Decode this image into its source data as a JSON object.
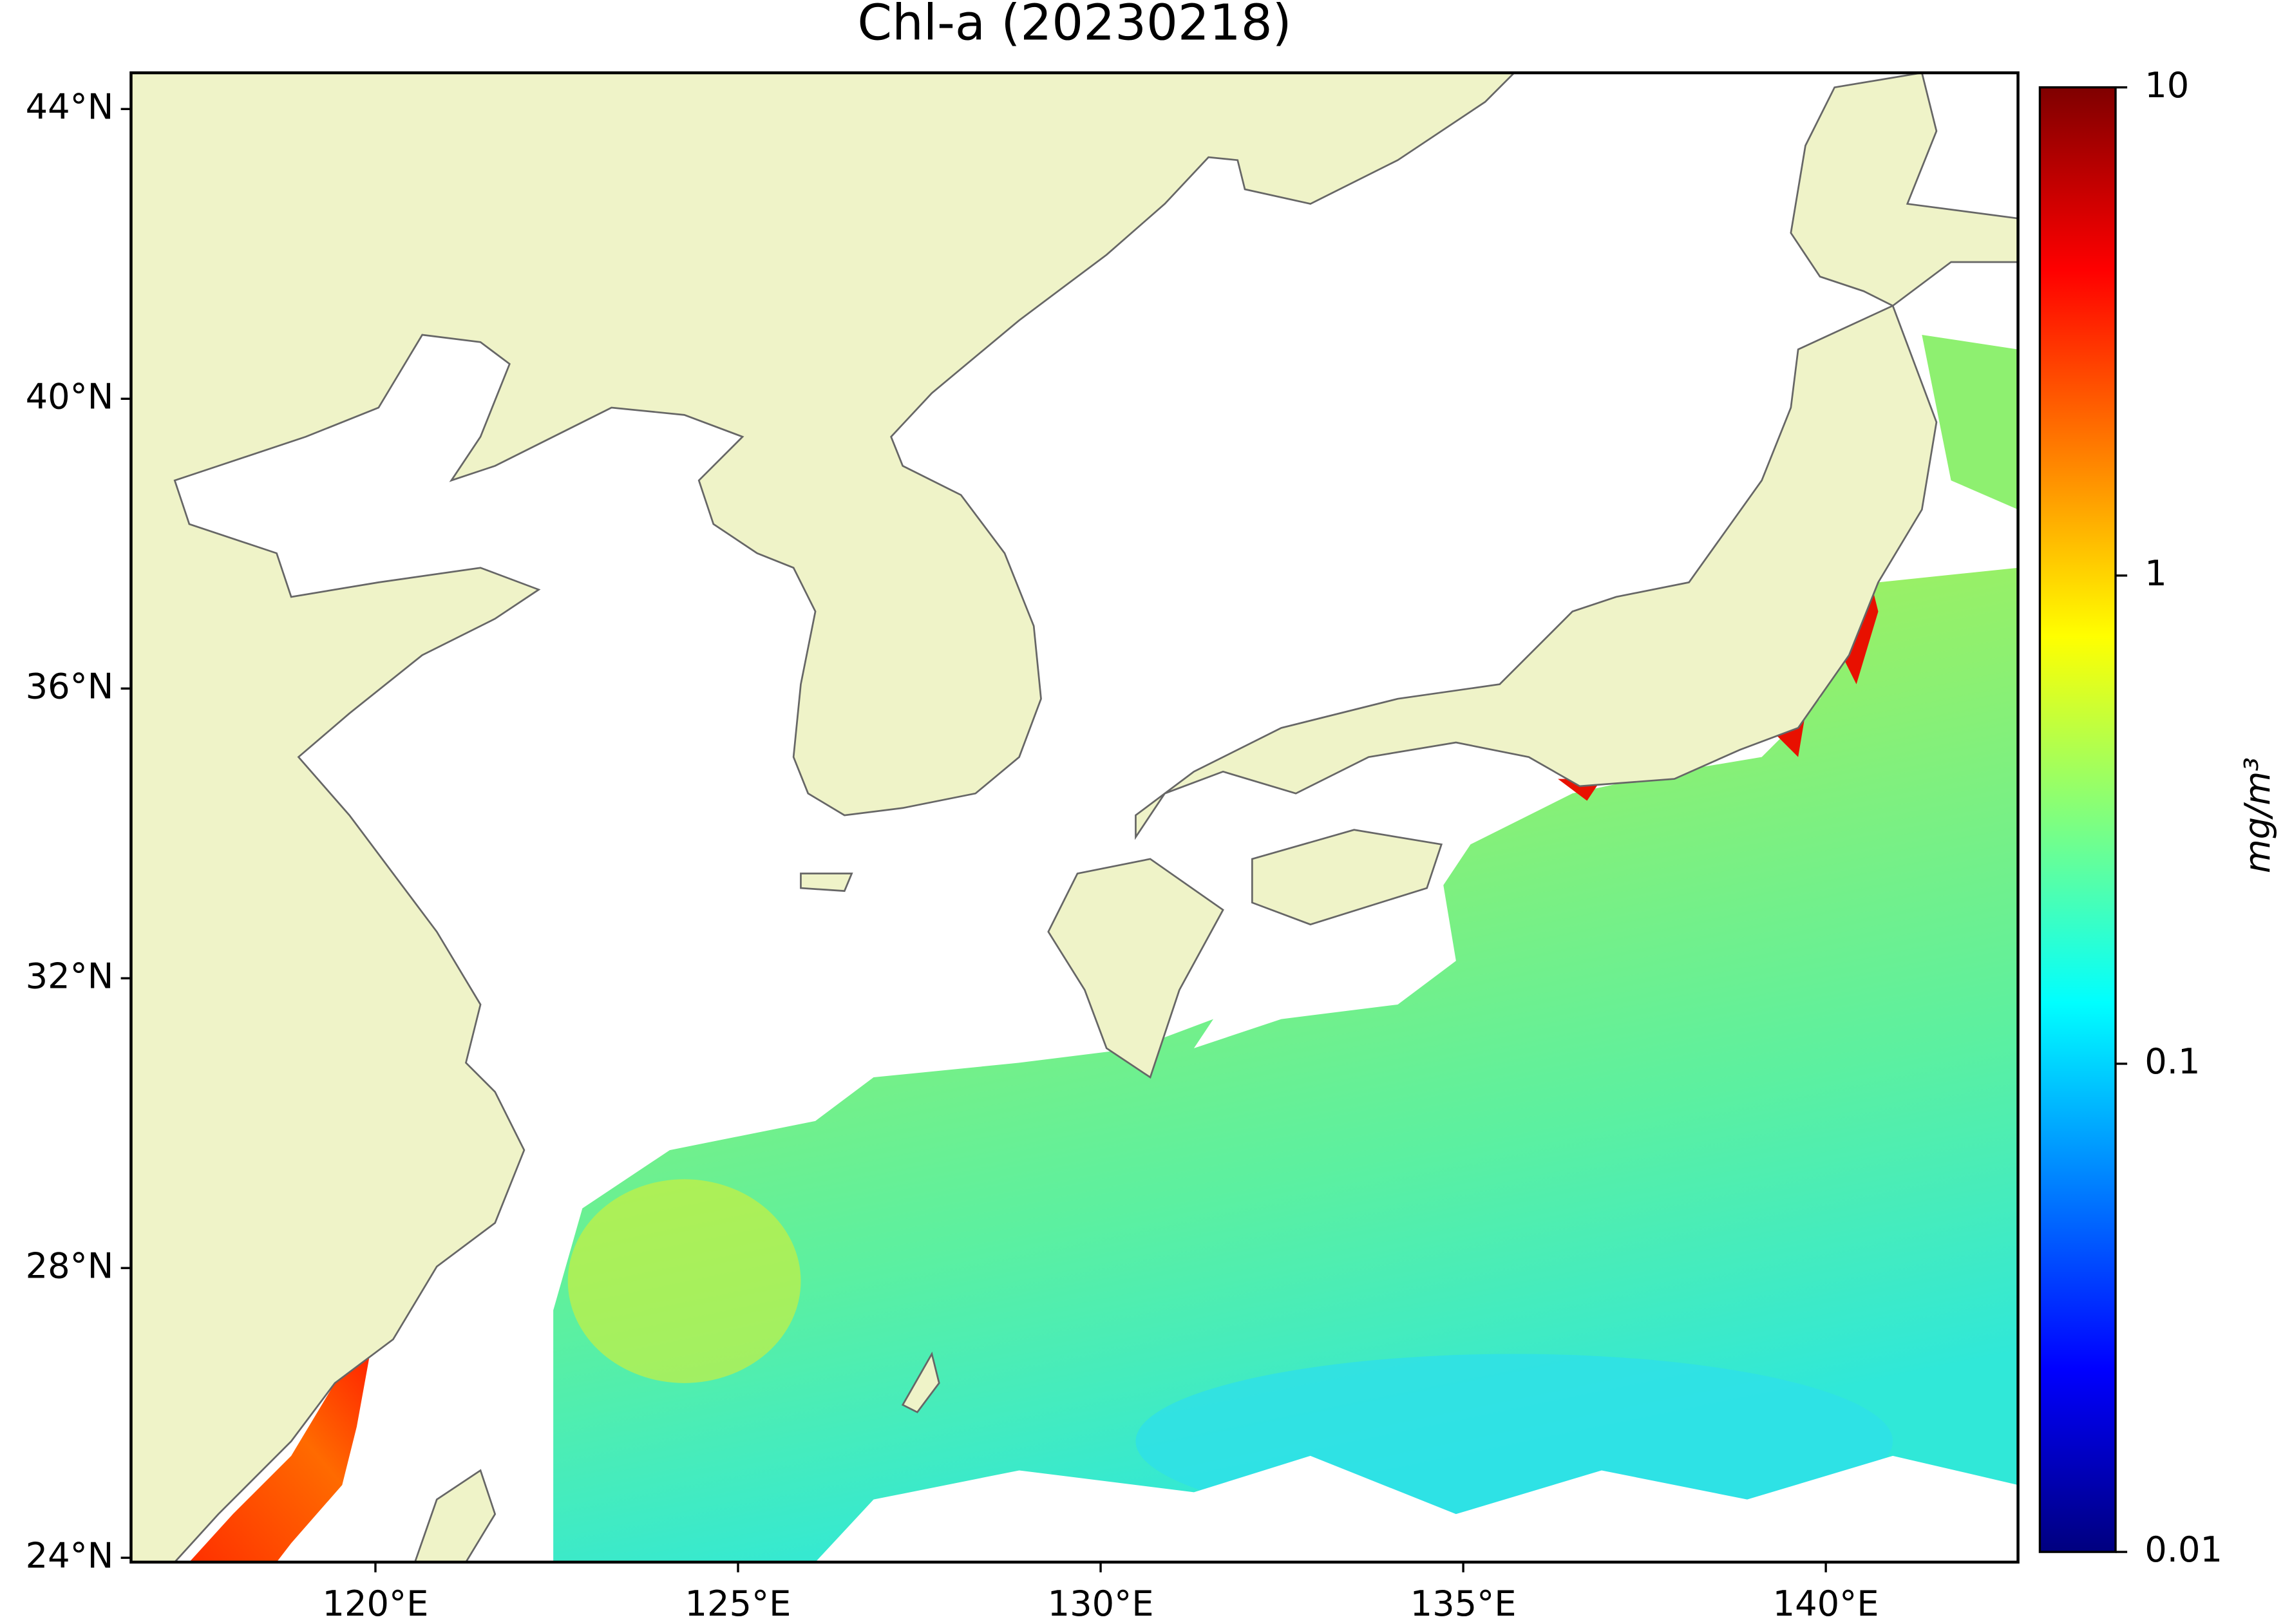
{
  "title": "Chl-a (20230218)",
  "map": {
    "xlim": [
      116.63,
      142.65
    ],
    "ylim": [
      23.94,
      44.5
    ],
    "xticks": [
      {
        "value": 120,
        "label": "120°E"
      },
      {
        "value": 125,
        "label": "125°E"
      },
      {
        "value": 130,
        "label": "130°E"
      },
      {
        "value": 135,
        "label": "135°E"
      },
      {
        "value": 140,
        "label": "140°E"
      }
    ],
    "yticks": [
      {
        "value": 24,
        "label": "24°N"
      },
      {
        "value": 28,
        "label": "28°N"
      },
      {
        "value": 32,
        "label": "32°N"
      },
      {
        "value": 36,
        "label": "36°N"
      },
      {
        "value": 40,
        "label": "40°N"
      },
      {
        "value": 44,
        "label": "44°N"
      }
    ]
  },
  "colorbar": {
    "label": "mg/m³",
    "scale": "log",
    "lim": [
      0.01,
      10
    ],
    "ticks": [
      0.01,
      0.1,
      1,
      10
    ],
    "colors": [
      "#00007f",
      "#0000ff",
      "#007fff",
      "#00ffff",
      "#7fff7f",
      "#ffff00",
      "#ff7f00",
      "#ff0000",
      "#7f0000"
    ]
  }
}
